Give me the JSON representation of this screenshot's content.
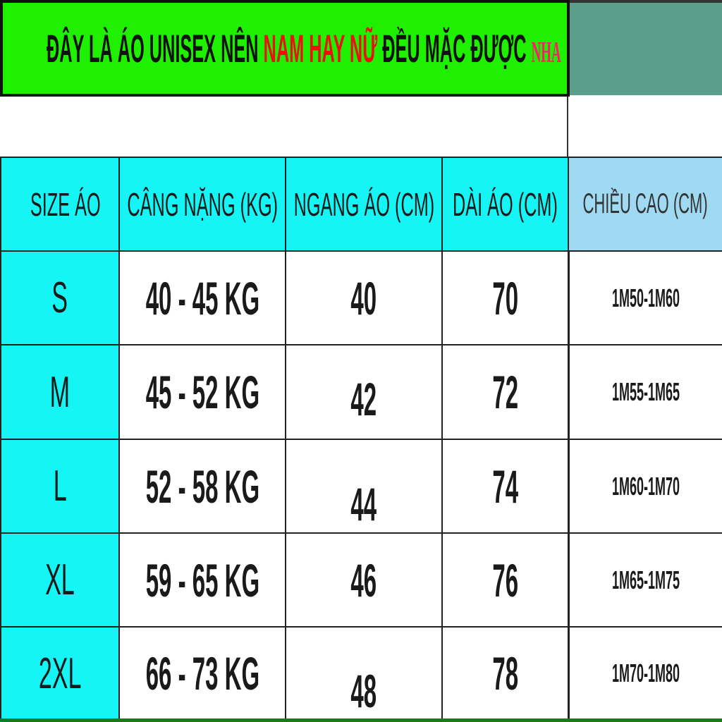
{
  "title": {
    "part1": "ĐÂY LÀ ÁO UNISEX NÊN ",
    "part2": "NAM HAY NỮ",
    "part3": " ĐỀU MẶC ĐƯỢC ",
    "part4": "NHA"
  },
  "colors": {
    "title_bg": "#1ff000",
    "header_bg": "#16f5f5",
    "height_header_bg": "#9fd9f2",
    "accent_red": "#e8130f"
  },
  "headers": [
    "SIZE ÁO",
    "CÂNG NẶNG (KG)",
    "NGANG ÁO (CM)",
    "DÀI ÁO (CM)",
    "CHIỀU CAO (CM)"
  ],
  "rows": [
    [
      "S",
      "40 - 45 KG",
      "40",
      "70",
      "1M50-1M60"
    ],
    [
      "M",
      "45 - 52 KG",
      "42",
      "72",
      "1M55-1M65"
    ],
    [
      "L",
      "52 - 58 KG",
      "44",
      "74",
      "1M60-1M70"
    ],
    [
      "XL",
      "59 - 65 KG",
      "46",
      "76",
      "1M65-1M75"
    ],
    [
      "2XL",
      "66 - 73 KG",
      "48",
      "78",
      "1M70-1M80"
    ]
  ]
}
